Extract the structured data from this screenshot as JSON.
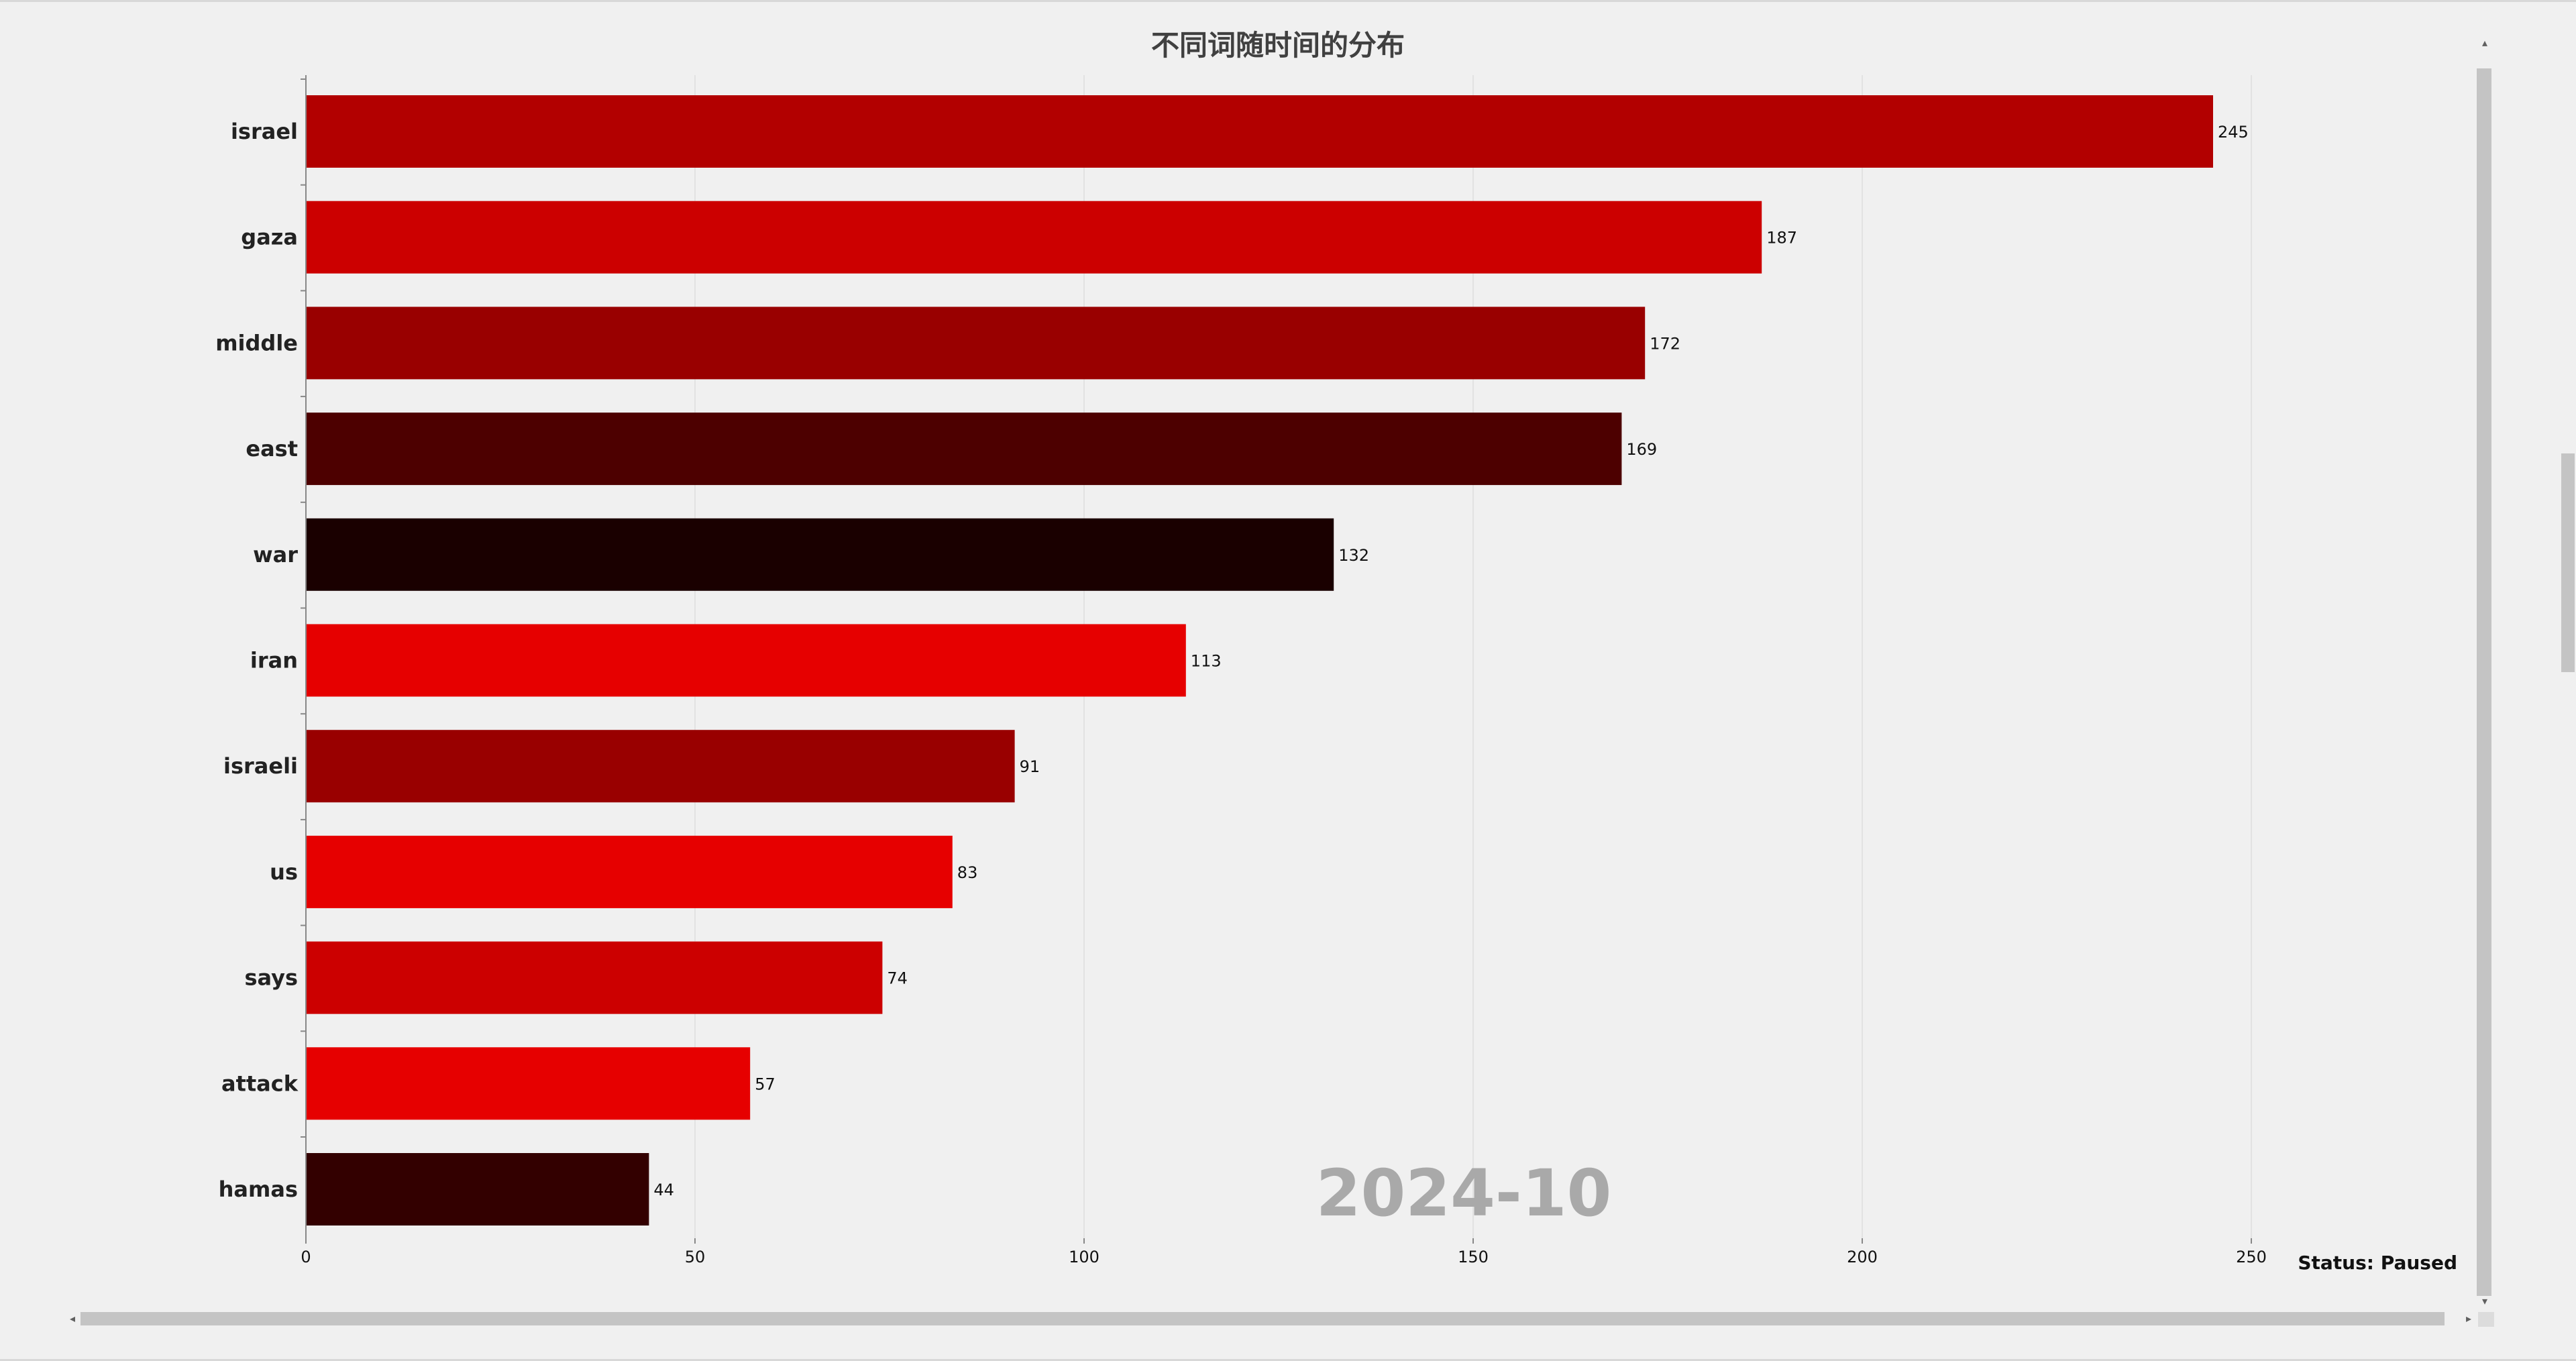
{
  "window": {
    "status_text": "Status: Paused"
  },
  "chart_data": {
    "type": "bar",
    "orientation": "horizontal",
    "title": "不同词随时间的分布",
    "period": "2024-10",
    "categories": [
      "israel",
      "gaza",
      "middle",
      "east",
      "war",
      "iran",
      "israeli",
      "us",
      "says",
      "attack",
      "hamas"
    ],
    "values": [
      245,
      187,
      172,
      169,
      132,
      113,
      91,
      83,
      74,
      57,
      44
    ],
    "colors": [
      "#b20000",
      "#cc0000",
      "#990000",
      "#4d0000",
      "#1a0000",
      "#e60000",
      "#990000",
      "#e60000",
      "#cc0000",
      "#e60000",
      "#330000"
    ],
    "xlim": [
      0,
      250
    ],
    "xticks": [
      0,
      50,
      100,
      150,
      200,
      250
    ],
    "xtick_labels": [
      "0",
      "50",
      "100",
      "150",
      "200",
      "250"
    ],
    "grid": "vertical"
  },
  "icons": {
    "scroll_up": "chevron-up-icon",
    "scroll_down": "chevron-down-icon",
    "scroll_left": "chevron-left-icon",
    "scroll_right": "chevron-right-icon"
  }
}
